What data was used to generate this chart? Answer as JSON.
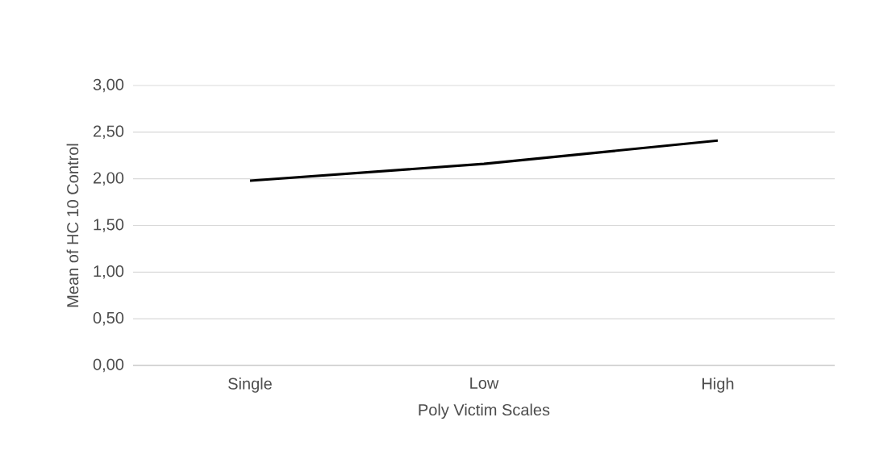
{
  "chart_data": {
    "type": "line",
    "xlabel": "Poly Victim Scales",
    "ylabel": "Mean of HC 10 Control",
    "categories": [
      "Single",
      "Low",
      "High"
    ],
    "series": [
      {
        "color": "#000000",
        "values": [
          1.98,
          2.16,
          2.41
        ]
      }
    ],
    "ylim": [
      0,
      3
    ],
    "yticks": [
      {
        "value": 0,
        "label": "0,00"
      },
      {
        "value": 0.5,
        "label": "0,50"
      },
      {
        "value": 1,
        "label": "1,00"
      },
      {
        "value": 1.5,
        "label": "1,50"
      },
      {
        "value": 2,
        "label": "2,00"
      },
      {
        "value": 2.5,
        "label": "2,50"
      },
      {
        "value": 3,
        "label": "3,00"
      }
    ],
    "grid": "y",
    "legend": false,
    "marker": "none",
    "line_style": "solid"
  }
}
